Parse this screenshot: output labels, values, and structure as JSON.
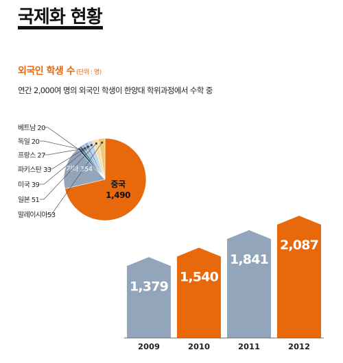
{
  "page": {
    "title": "국제화 현황",
    "section_heading": "외국인 학생 수",
    "unit_note": "(단위 : 명)",
    "subtitle": "연간 2,000여 명의 외국인 학생이 한양대 학위과정에서 수학 중"
  },
  "colors": {
    "orange": "#e8680c",
    "slate": "#92a5bb",
    "lavender": "#a3b3cc",
    "pale_yellow": "#f3c77a",
    "light_yellow": "#f7dfa8",
    "light_blue": "#bcd3ea",
    "sky_blue": "#8fb4d8",
    "teal": "#2d7fa3",
    "navy": "#1e3f73",
    "leader_line": "#555555"
  },
  "chart_data": [
    {
      "type": "pie",
      "slices": [
        {
          "label": "중국",
          "value": 1490,
          "value_label": "1,490",
          "color": "#e8680c"
        },
        {
          "label": "기타",
          "value": 354,
          "value_label": "354",
          "color": "#92a5bb"
        },
        {
          "label": "베트남",
          "value": 20,
          "value_label": "20",
          "color": "#1e3f73"
        },
        {
          "label": "독일",
          "value": 20,
          "value_label": "20",
          "color": "#2d7fa3"
        },
        {
          "label": "프랑스",
          "value": 27,
          "value_label": "27",
          "color": "#a3b3cc"
        },
        {
          "label": "파키스탄",
          "value": 33,
          "value_label": "33",
          "color": "#8fb4d8"
        },
        {
          "label": "미국",
          "value": 39,
          "value_label": "39",
          "color": "#bcd3ea"
        },
        {
          "label": "일본",
          "value": 51,
          "value_label": "51",
          "color": "#f7dfa8"
        },
        {
          "label": "말레이시아",
          "value": 53,
          "value_label": "53",
          "color": "#f3c77a"
        }
      ],
      "callouts": [
        {
          "text": "베트남 20",
          "slice": "베트남"
        },
        {
          "text": "독일 20",
          "slice": "독일"
        },
        {
          "text": "프랑스 27",
          "slice": "프랑스"
        },
        {
          "text": "파키스탄 33",
          "slice": "파키스탄"
        },
        {
          "text": "미국 39",
          "slice": "미국"
        },
        {
          "text": "일본 51",
          "slice": "일본"
        },
        {
          "text": "말레이시아53",
          "slice": "말레이시아"
        }
      ],
      "inside_labels": {
        "other": "기타 354",
        "china_name": "중국",
        "china_value": "1,490"
      }
    },
    {
      "type": "bar",
      "categories": [
        "2009",
        "2010",
        "2011",
        "2012"
      ],
      "values": [
        1379,
        1540,
        1841,
        2087
      ],
      "value_labels": [
        "1,379",
        "1,540",
        "1,841",
        "2,087"
      ],
      "bar_colors": [
        "#92a5bb",
        "#e8680c",
        "#92a5bb",
        "#e8680c"
      ],
      "ylim": [
        0,
        2087
      ]
    }
  ]
}
